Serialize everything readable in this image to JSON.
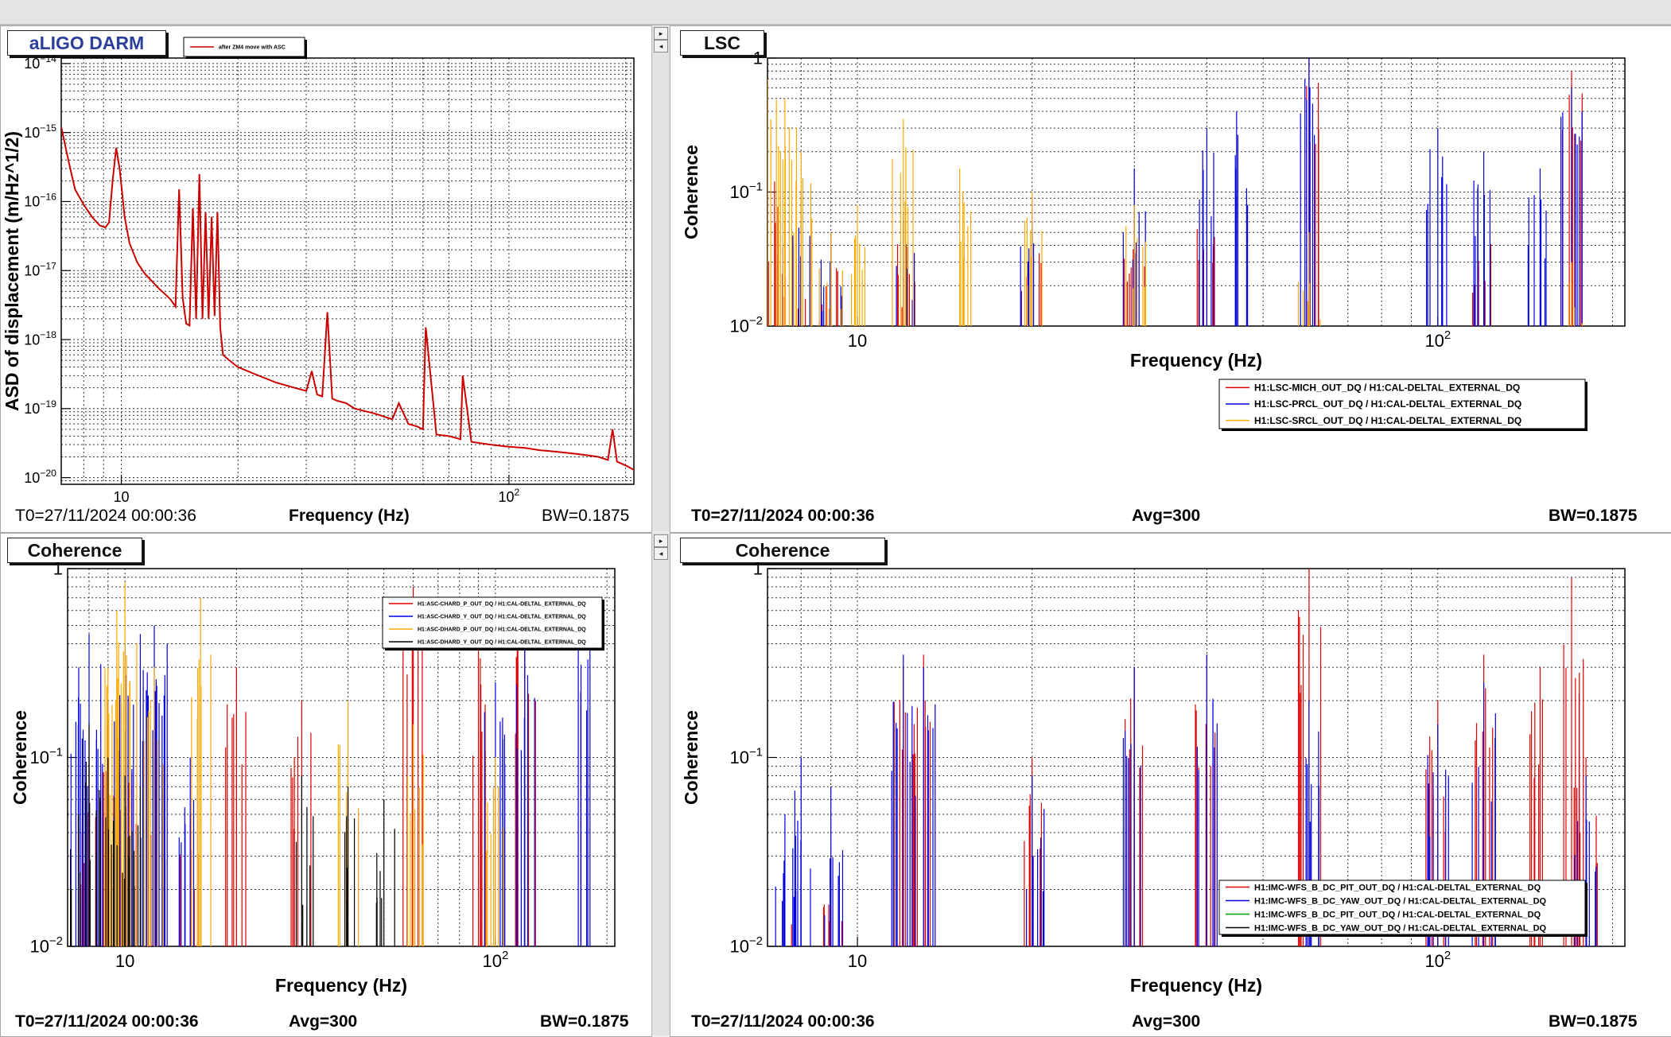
{
  "panels": [
    {
      "title": "aLIGO DARM",
      "title_color": "#2c3f9a",
      "footer_left": "T0=27/11/2024 00:00:36",
      "footer_mid": "Frequency (Hz)",
      "footer_right": "BW=0.1875"
    },
    {
      "title": "LSC",
      "footer_left": "T0=27/11/2024 00:00:36",
      "footer_mid": "Avg=300",
      "footer_right": "BW=0.1875"
    },
    {
      "title": "Coherence",
      "footer_left": "T0=27/11/2024 00:00:36",
      "footer_mid": "Avg=300",
      "footer_right": "BW=0.1875"
    },
    {
      "title": "Coherence",
      "footer_left": "T0=27/11/2024 00:00:36",
      "footer_mid": "Avg=300",
      "footer_right": "BW=0.1875"
    }
  ],
  "chart_data": [
    {
      "type": "line",
      "scale": "log-log",
      "xlabel": "",
      "ylabel": "ASD of displacement (m/Hz^1/2)",
      "xlim": [
        7,
        210
      ],
      "ylim": [
        8e-21,
        1.2e-14
      ],
      "xticks": [
        10,
        100
      ],
      "xtick_labels": [
        "10",
        "10^2"
      ],
      "yticks": [
        1e-20,
        1e-19,
        1e-18,
        1e-17,
        1e-16,
        1e-15,
        1e-14
      ],
      "ytick_labels": [
        "10^-20",
        "10^-19",
        "10^-18",
        "10^-17",
        "10^-16",
        "10^-15",
        "10^-14"
      ],
      "grid": true,
      "legend_position": "top-left",
      "series": [
        {
          "name": "after ZM4 move with ASC",
          "color": "#cc0000",
          "x": [
            7,
            7.3,
            7.6,
            8,
            8.4,
            8.8,
            9.1,
            9.3,
            9.5,
            9.7,
            9.9,
            10.2,
            10.5,
            11,
            11.5,
            12,
            12.5,
            13,
            13.4,
            13.8,
            14.1,
            14.4,
            14.7,
            15,
            15.3,
            15.6,
            15.9,
            16.2,
            16.5,
            16.8,
            17.1,
            17.4,
            17.7,
            18,
            18.3,
            19,
            20,
            22,
            25,
            28,
            30,
            31,
            32,
            33,
            34,
            35,
            36,
            38,
            40,
            45,
            50,
            52,
            55,
            58,
            60,
            61,
            65,
            70,
            75,
            76,
            80,
            90,
            100,
            110,
            120,
            130,
            140,
            150,
            160,
            170,
            180,
            185,
            190,
            200,
            210
          ],
          "y": [
            1.2e-15,
            4e-16,
            1.5e-16,
            9e-17,
            6e-17,
            4.5e-17,
            4.2e-17,
            5e-17,
            2e-16,
            6e-16,
            3e-16,
            6e-17,
            2.5e-17,
            1.3e-17,
            9e-18,
            7e-18,
            5.5e-18,
            4.5e-18,
            3.8e-18,
            3e-18,
            1.5e-16,
            4e-18,
            1.7e-18,
            1.6e-18,
            8e-17,
            2e-18,
            2.5e-16,
            2e-18,
            7e-17,
            2e-18,
            6e-17,
            2.2e-18,
            7e-17,
            1.5e-18,
            6e-19,
            5e-19,
            4e-19,
            3.2e-19,
            2.4e-19,
            2e-19,
            1.8e-19,
            3.5e-19,
            1.6e-19,
            1.5e-19,
            2.5e-18,
            1.4e-19,
            1.3e-19,
            1.2e-19,
            1e-19,
            8.5e-20,
            7e-20,
            1.2e-19,
            6e-20,
            5.5e-20,
            5e-20,
            1.5e-18,
            4.2e-20,
            4e-20,
            3.6e-20,
            3e-19,
            3.3e-20,
            3e-20,
            2.8e-20,
            2.7e-20,
            2.5e-20,
            2.4e-20,
            2.3e-20,
            2.2e-20,
            2.1e-20,
            2e-20,
            1.8e-20,
            5e-20,
            1.7e-20,
            1.5e-20,
            1.3e-20
          ]
        }
      ]
    },
    {
      "type": "line",
      "scale": "log-log",
      "xlabel": "Frequency (Hz)",
      "ylabel": "Coherence",
      "xlim": [
        7,
        210
      ],
      "ylim": [
        0.01,
        1
      ],
      "xticks": [
        10,
        100
      ],
      "xtick_labels": [
        "10",
        "10^2"
      ],
      "yticks": [
        0.01,
        0.1,
        1
      ],
      "ytick_labels": [
        "10^-2",
        "10^-1",
        "1"
      ],
      "grid": true,
      "legend_position": "bottom-right",
      "series": [
        {
          "name": "H1:LSC-MICH_OUT_DQ / H1:CAL-DELTAL_EXTERNAL_DQ",
          "color": "#e00000",
          "x": [
            7.2,
            7.5,
            8,
            9,
            12,
            20,
            30,
            40,
            60,
            120,
            170
          ],
          "y": [
            0.12,
            0.06,
            0.03,
            0.04,
            0.06,
            0.05,
            0.06,
            0.08,
            1.0,
            0.07,
            0.8
          ]
        },
        {
          "name": "H1:LSC-PRCL_OUT_DQ / H1:CAL-DELTAL_EXTERNAL_DQ",
          "color": "#0000e0",
          "x": [
            8,
            9,
            12,
            20,
            30,
            40,
            45,
            60,
            100,
            120,
            150,
            170
          ],
          "y": [
            0.1,
            0.05,
            0.07,
            0.06,
            0.15,
            0.3,
            0.4,
            1.0,
            0.3,
            0.2,
            0.15,
            0.6
          ]
        },
        {
          "name": "H1:LSC-SRCL_OUT_DQ / H1:CAL-DELTAL_EXTERNAL_DQ",
          "color": "#ffaa00",
          "x": [
            7,
            7.5,
            8,
            9,
            10,
            12,
            15,
            20,
            30,
            60,
            170
          ],
          "y": [
            0.7,
            0.5,
            0.2,
            0.05,
            0.08,
            0.35,
            0.15,
            0.1,
            0.08,
            0.05,
            0.03
          ]
        }
      ]
    },
    {
      "type": "line",
      "scale": "log-log",
      "xlabel": "Frequency (Hz)",
      "ylabel": "Coherence",
      "xlim": [
        7,
        210
      ],
      "ylim": [
        0.01,
        1
      ],
      "xticks": [
        10,
        100
      ],
      "xtick_labels": [
        "10",
        "10^2"
      ],
      "yticks": [
        0.01,
        0.1,
        1
      ],
      "ytick_labels": [
        "10^-2",
        "10^-1",
        "1"
      ],
      "grid": true,
      "legend_position": "top-right",
      "series": [
        {
          "name": "H1:ASC-CHARD_P_OUT_DQ / H1:CAL-DELTAL_EXTERNAL_DQ",
          "color": "#e00000",
          "x": [
            8,
            9,
            10,
            12,
            15,
            20,
            30,
            60,
            90,
            120
          ],
          "y": [
            0.1,
            0.15,
            0.12,
            0.1,
            0.05,
            0.3,
            0.2,
            0.8,
            0.5,
            0.6
          ]
        },
        {
          "name": "H1:ASC-CHARD_Y_OUT_DQ / H1:CAL-DELTAL_EXTERNAL_DQ",
          "color": "#0000e0",
          "x": [
            7.5,
            8,
            9,
            10,
            11,
            12,
            13,
            15,
            100,
            120,
            180
          ],
          "y": [
            0.3,
            0.45,
            0.2,
            0.4,
            0.45,
            0.5,
            0.4,
            0.1,
            0.25,
            0.4,
            0.7
          ]
        },
        {
          "name": "H1:ASC-DHARD_P_OUT_DQ / H1:CAL-DELTAL_EXTERNAL_DQ",
          "color": "#ffaa00",
          "x": [
            9,
            9.5,
            10,
            12,
            16,
            40,
            60,
            100
          ],
          "y": [
            0.3,
            0.6,
            0.85,
            0.3,
            0.7,
            0.2,
            0.15,
            0.1
          ]
        },
        {
          "name": "H1:ASC-DHARD_Y_OUT_DQ / H1:CAL-DELTAL_EXTERNAL_DQ",
          "color": "#000000",
          "x": [
            7.5,
            8,
            9,
            10,
            11,
            30,
            40,
            50
          ],
          "y": [
            0.05,
            0.15,
            0.1,
            0.08,
            0.07,
            0.08,
            0.07,
            0.06
          ]
        }
      ]
    },
    {
      "type": "line",
      "scale": "log-log",
      "xlabel": "Frequency (Hz)",
      "ylabel": "Coherence",
      "xlim": [
        7,
        210
      ],
      "ylim": [
        0.01,
        1
      ],
      "xticks": [
        10,
        100
      ],
      "xtick_labels": [
        "10",
        "10^2"
      ],
      "yticks": [
        0.01,
        0.1,
        1
      ],
      "ytick_labels": [
        "10^-2",
        "10^-1",
        "1"
      ],
      "grid": true,
      "legend_position": "bottom-right",
      "series": [
        {
          "name": "H1:IMC-WFS_B_DC_PIT_OUT_DQ / H1:CAL-DELTAL_EXTERNAL_DQ",
          "color": "#e00000",
          "x": [
            7.5,
            9,
            12,
            13,
            20,
            30,
            40,
            60,
            100,
            120,
            150,
            170,
            180
          ],
          "y": [
            0.02,
            0.03,
            0.3,
            0.35,
            0.1,
            0.3,
            0.35,
            1.0,
            0.2,
            0.35,
            0.3,
            0.9,
            0.1
          ]
        },
        {
          "name": "H1:IMC-WFS_B_DC_YAW_OUT_DQ / H1:CAL-DELTAL_EXTERNAL_DQ",
          "color": "#0000e0",
          "x": [
            7.5,
            8,
            9,
            12,
            13,
            20,
            30,
            40,
            60,
            100,
            120,
            180
          ],
          "y": [
            0.05,
            0.1,
            0.07,
            0.35,
            0.3,
            0.08,
            0.3,
            0.35,
            0.2,
            0.15,
            0.25,
            0.08
          ]
        },
        {
          "name": "H1:IMC-WFS_B_DC_PIT_OUT_DQ / H1:CAL-DELTAL_EXTERNAL_DQ",
          "color": "#00a000",
          "x": [
            8,
            30
          ],
          "y": [
            0.01,
            0.01
          ]
        },
        {
          "name": "H1:IMC-WFS_B_DC_YAW_OUT_DQ / H1:CAL-DELTAL_EXTERNAL_DQ",
          "color": "#000000",
          "x": [
            8,
            30
          ],
          "y": [
            0.01,
            0.01
          ]
        }
      ]
    }
  ]
}
